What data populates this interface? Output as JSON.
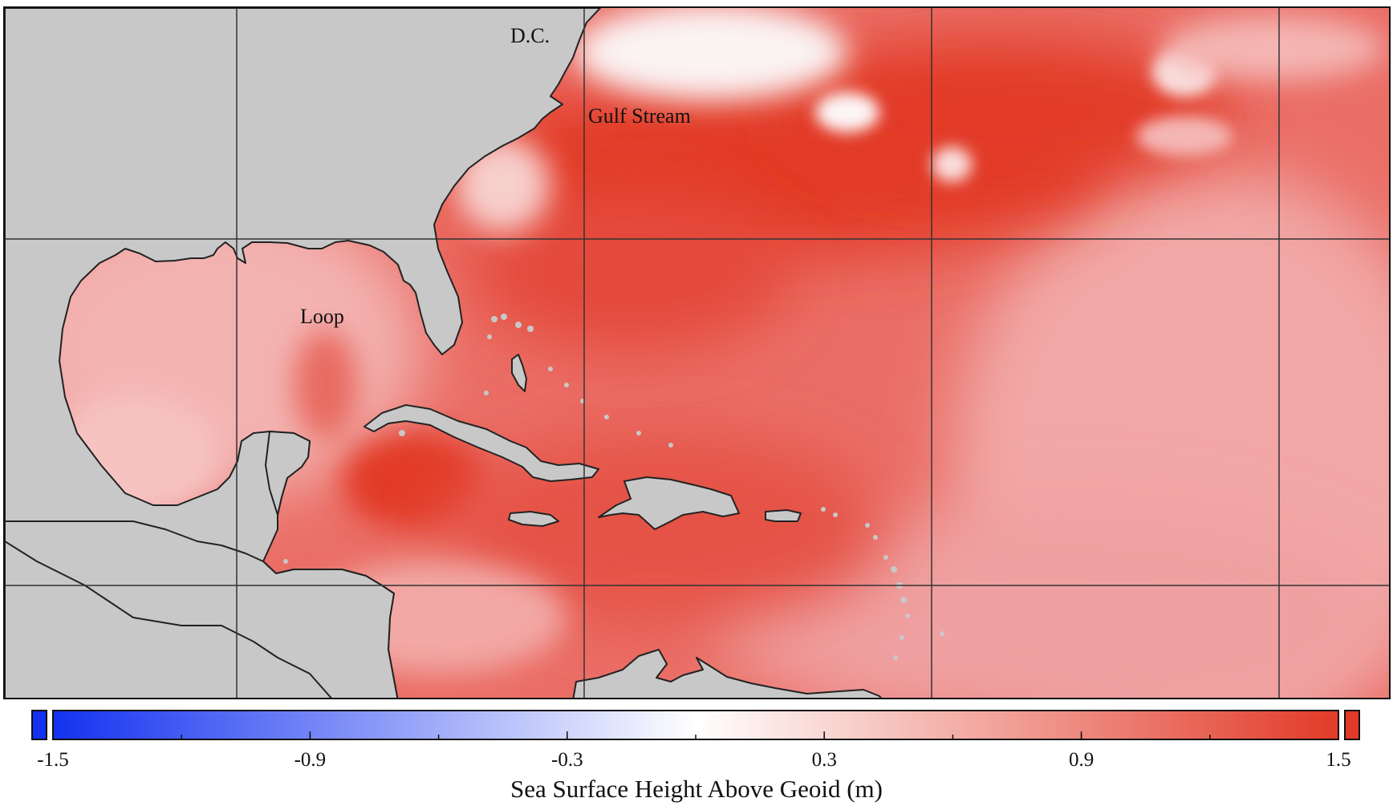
{
  "map": {
    "variable": "Sea Surface Height Above Geoid",
    "labels": {
      "dc": "D.C.",
      "gulf_stream": "Gulf Stream",
      "loop": "Loop"
    }
  },
  "colorbar": {
    "title": "Sea Surface Height Above Geoid (m)",
    "min": -1.5,
    "max": 1.5,
    "ticks": [
      "-1.5",
      "-0.9",
      "-0.3",
      "0.3",
      "0.9",
      "1.5"
    ],
    "colors": {
      "low": "#1432f0",
      "mid": "#ffffff",
      "high": "#e23a28"
    }
  },
  "colors": {
    "land": "#c8c8c8",
    "ocean_base": "#ea6e66",
    "warm": "#e23a28",
    "pale": "#f2a9a6",
    "white_patch": "#fbf3f3",
    "grid": "#333333"
  }
}
